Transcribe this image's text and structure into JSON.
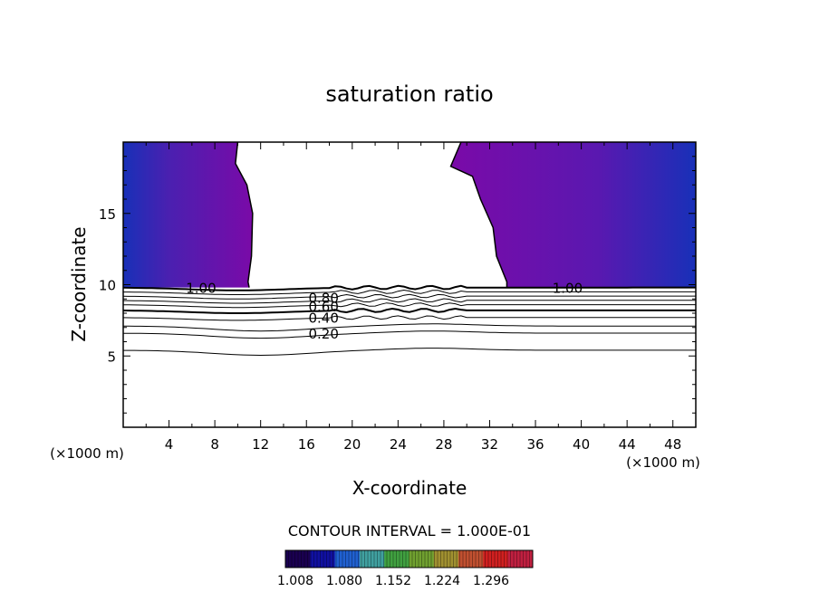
{
  "chart_data": {
    "type": "contour",
    "title": "saturation ratio",
    "xlabel": "X-coordinate",
    "ylabel": "Z-coordinate",
    "x_units": "(×1000 m)",
    "y_units": "(×1000 m)",
    "xlim": [
      0,
      50
    ],
    "ylim": [
      0,
      20
    ],
    "x_ticks": [
      4,
      8,
      12,
      16,
      20,
      24,
      28,
      32,
      36,
      40,
      44,
      48
    ],
    "y_ticks": [
      5,
      10,
      15
    ],
    "contour_interval_label": "CONTOUR INTERVAL = 1.000E-01",
    "contours": [
      {
        "level": 0.1,
        "z": 5.4,
        "label": ""
      },
      {
        "level": 0.2,
        "z": 6.6,
        "label": "0.20"
      },
      {
        "level": 0.3,
        "z": 7.1,
        "label": ""
      },
      {
        "level": 0.4,
        "z": 7.7,
        "label": "0.40"
      },
      {
        "level": 0.5,
        "z": 8.2,
        "label": ""
      },
      {
        "level": 0.6,
        "z": 8.6,
        "label": "0.60"
      },
      {
        "level": 0.7,
        "z": 8.9,
        "label": ""
      },
      {
        "level": 0.8,
        "z": 9.2,
        "label": "0.80"
      },
      {
        "level": 0.9,
        "z": 9.5,
        "label": ""
      },
      {
        "level": 1.0,
        "z": 9.8,
        "label": "1.00"
      }
    ],
    "supersaturated_region_left": {
      "x_range": [
        0,
        11
      ],
      "z_range": [
        9.8,
        20
      ]
    },
    "supersaturated_region_right": {
      "x_range": [
        33.5,
        50
      ],
      "z_range": [
        9.8,
        20
      ]
    },
    "colorbar": {
      "tick_labels": [
        "1.008",
        "1.080",
        "1.152",
        "1.224",
        "1.296"
      ],
      "colors": [
        "#1a0050",
        "#1010a0",
        "#2060d0",
        "#40a0a0",
        "#40a040",
        "#70a030",
        "#a09030",
        "#c05030",
        "#d02020",
        "#c02040"
      ]
    }
  }
}
